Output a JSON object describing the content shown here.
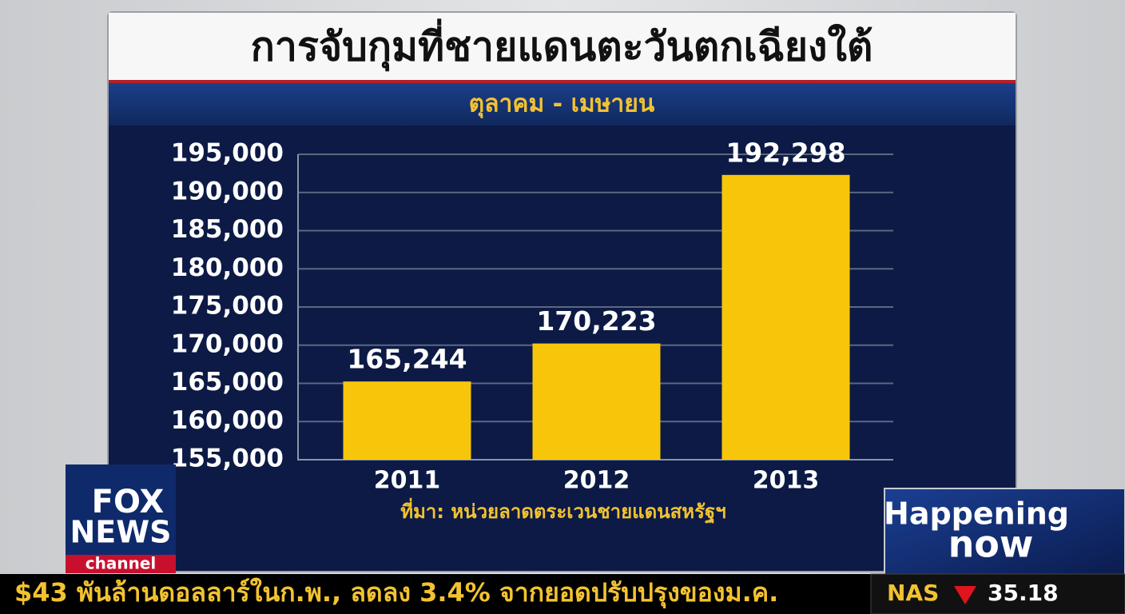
{
  "chart_data": {
    "type": "bar",
    "title": "การจับกุมที่ชายแดนตะวันตกเฉียงใต้",
    "subtitle": "ตุลาคม - เมษายน",
    "categories": [
      "2011",
      "2012",
      "2013"
    ],
    "values": [
      165244,
      170223,
      192298
    ],
    "value_labels": [
      "165,244",
      "170,223",
      "192,298"
    ],
    "color": "#f7c60a",
    "ylim": [
      155000,
      195000
    ],
    "yticks": [
      {
        "value": 155000,
        "label": "155,000"
      },
      {
        "value": 160000,
        "label": "160,000"
      },
      {
        "value": 165000,
        "label": "165,000"
      },
      {
        "value": 170000,
        "label": "170,000"
      },
      {
        "value": 175000,
        "label": "175,000"
      },
      {
        "value": 180000,
        "label": "180,000"
      },
      {
        "value": 185000,
        "label": "185,000"
      },
      {
        "value": 190000,
        "label": "190,000"
      },
      {
        "value": 195000,
        "label": "195,000"
      }
    ],
    "grid": true,
    "source": "ที่มา: หน่วยลาดตระเวนชายแดนสหรัฐฯ"
  },
  "logo": {
    "line1": "FOX",
    "line2": "NEWS",
    "line3": "channel"
  },
  "badge": {
    "line1": "Happening",
    "line2": "now"
  },
  "ticker": {
    "text": "$43 พันล้านดอลลาร์ในก.พ., ลดลง 3.4% จากยอดปรับปรุงของม.ค.",
    "symbol": "NAS",
    "change": "35.18"
  }
}
